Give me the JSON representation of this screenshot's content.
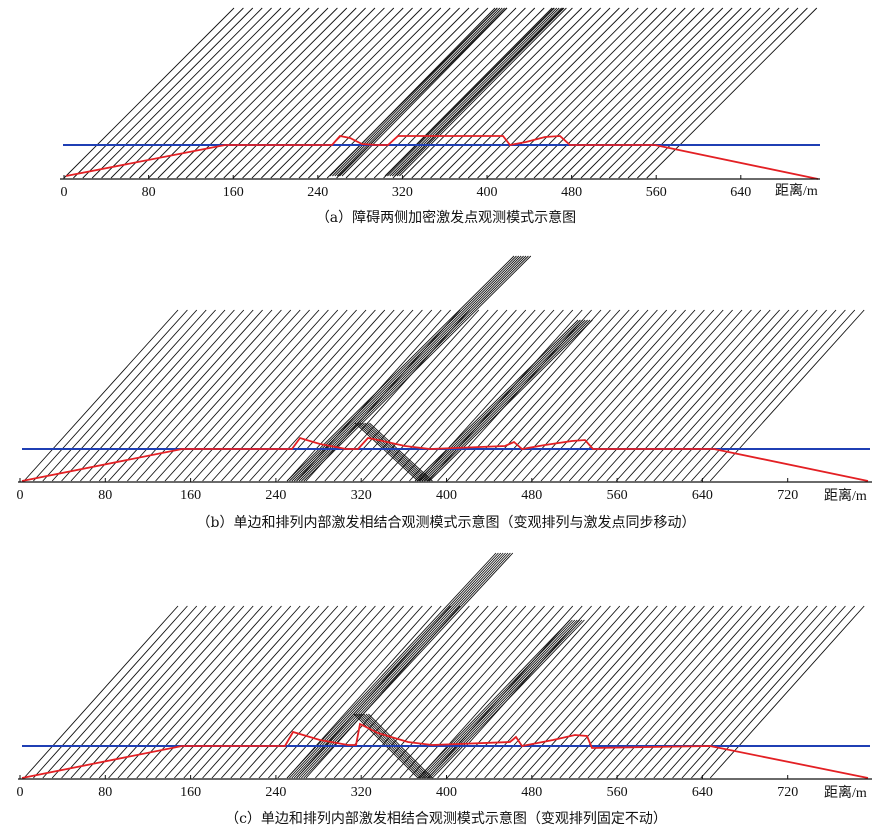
{
  "colors": {
    "hatch": "#111111",
    "blue": "#1f3fb4",
    "red": "#e32024",
    "axis": "#111111"
  },
  "panels": [
    {
      "id": "a",
      "caption": "（a）障碍两侧加密激发点观测模式示意图",
      "axis_label": "距离/m",
      "ticks": [
        "0",
        "80",
        "160",
        "240",
        "320",
        "400",
        "480",
        "560",
        "640"
      ]
    },
    {
      "id": "b",
      "caption": "（b）单边和排列内部激发相结合观测模式示意图（变观排列与激发点同步移动）",
      "axis_label": "距离/m",
      "ticks": [
        "0",
        "80",
        "160",
        "240",
        "320",
        "400",
        "480",
        "560",
        "640",
        "720"
      ]
    },
    {
      "id": "c",
      "caption": "（c）单边和排列内部激发相结合观测模式示意图（变观排列固定不动）",
      "axis_label": "距离/m",
      "ticks": [
        "0",
        "80",
        "160",
        "240",
        "320",
        "400",
        "480",
        "560",
        "640",
        "720"
      ]
    }
  ]
}
